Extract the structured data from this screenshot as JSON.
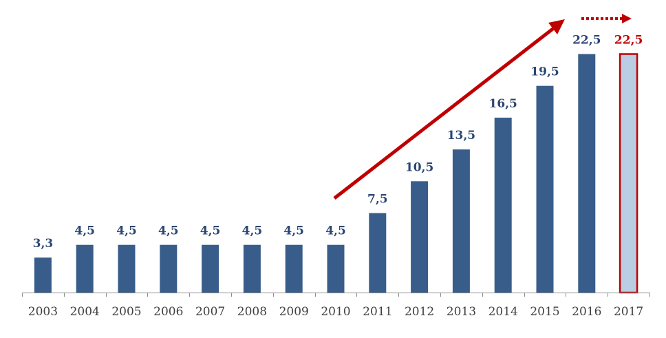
{
  "chart_data": {
    "type": "bar",
    "categories": [
      "2003",
      "2004",
      "2005",
      "2006",
      "2007",
      "2008",
      "2009",
      "2010",
      "2011",
      "2012",
      "2013",
      "2014",
      "2015",
      "2016",
      "2017"
    ],
    "values": [
      3.3,
      4.5,
      4.5,
      4.5,
      4.5,
      4.5,
      4.5,
      4.5,
      7.5,
      10.5,
      13.5,
      16.5,
      19.5,
      22.5,
      22.5
    ],
    "data_labels": [
      "3,3",
      "4,5",
      "4,5",
      "4,5",
      "4,5",
      "4,5",
      "4,5",
      "4,5",
      "7,5",
      "10,5",
      "13,5",
      "16,5",
      "19,5",
      "22,5",
      "22,5"
    ],
    "highlighted_categories": [
      "2017"
    ],
    "ylim": [
      0,
      25
    ],
    "y_axis_visible": false,
    "grid": false,
    "legend": "none"
  },
  "colors": {
    "bar": "#385D8A",
    "highlight_bar_fill": "#B9CDE5",
    "highlight_accent": "#C00000",
    "data_label": "#2B4673",
    "tick_label": "#3F3F3F",
    "axis": "#8C8C8C",
    "trend_arrow": "#C00000"
  }
}
